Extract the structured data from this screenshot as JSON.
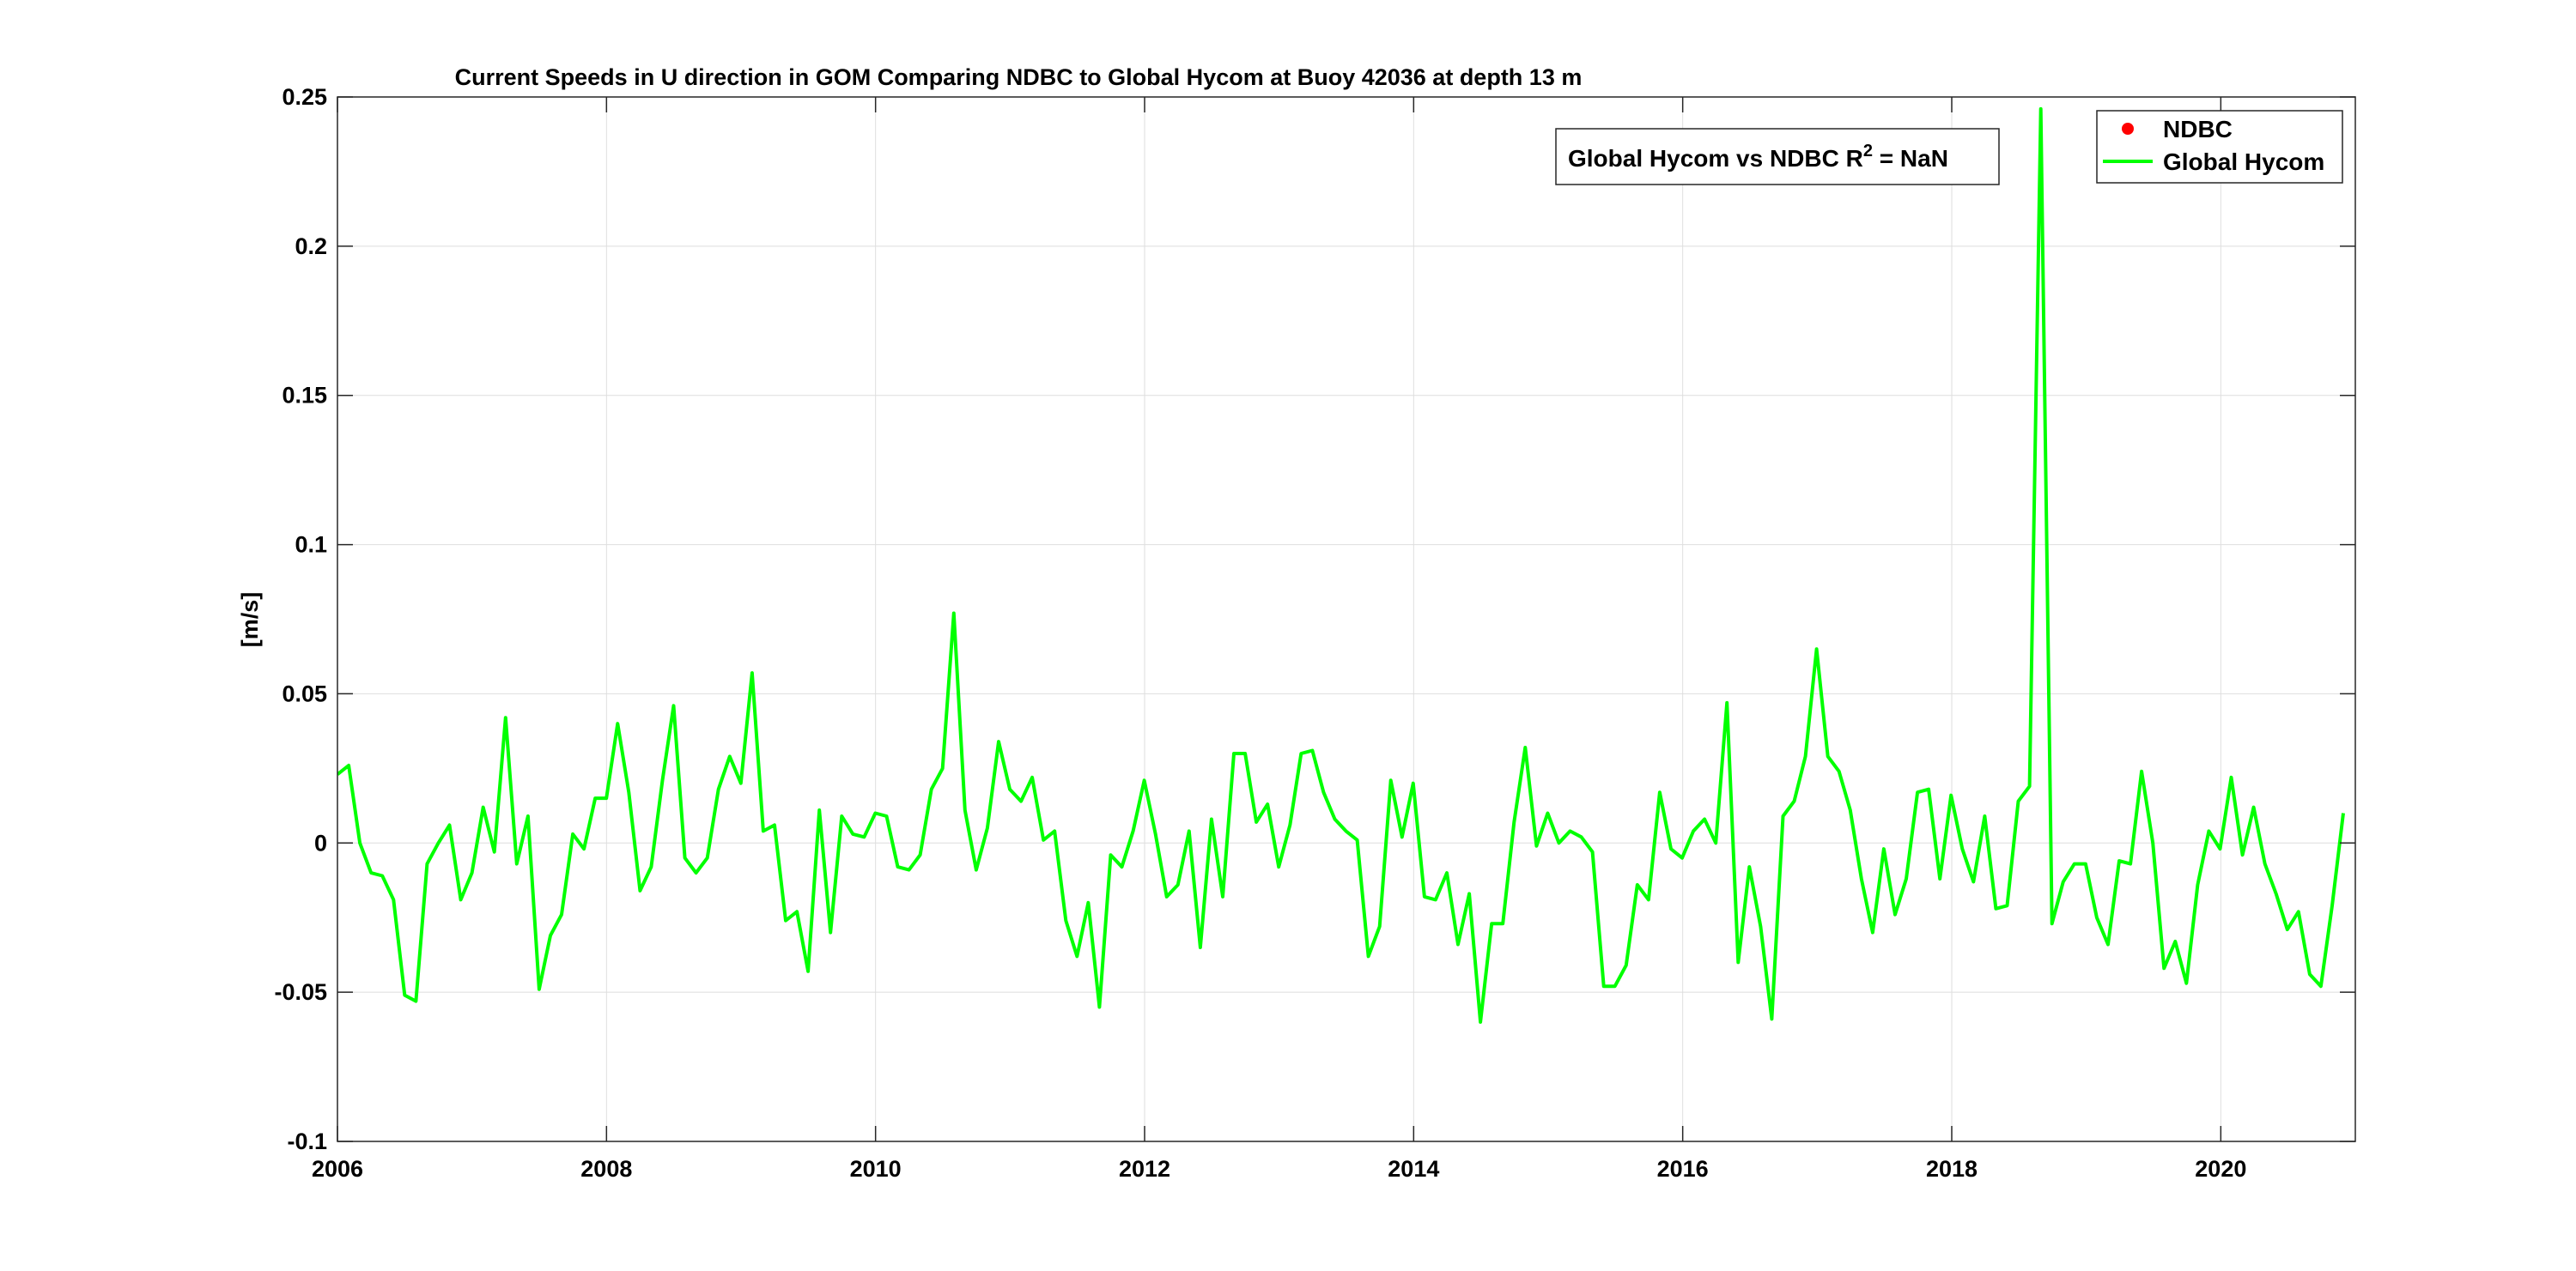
{
  "chart_data": {
    "type": "line",
    "title": "Current Speeds in U direction in GOM Comparing NDBC to Global Hycom at Buoy  42036  at depth  13 m",
    "xlabel": "",
    "ylabel": "[m/s]",
    "xlim": [
      2006,
      2021
    ],
    "ylim": [
      -0.1,
      0.25
    ],
    "x_ticks": [
      2006,
      2008,
      2010,
      2012,
      2014,
      2016,
      2018,
      2020
    ],
    "y_ticks": [
      -0.1,
      -0.05,
      0,
      0.05,
      0.1,
      0.15,
      0.2,
      0.25
    ],
    "x_tick_labels": [
      "2006",
      "2008",
      "2010",
      "2012",
      "2014",
      "2016",
      "2018",
      "2020"
    ],
    "y_tick_labels": [
      "-0.1",
      "-0.05",
      "0",
      "0.05",
      "0.1",
      "0.15",
      "0.2",
      "0.25"
    ],
    "grid": true,
    "legend_position": "top-right",
    "annotation": {
      "prefix": "Global Hycom vs NDBC R",
      "superscript": "2",
      "suffix": " = NaN"
    },
    "series": [
      {
        "name": "NDBC",
        "marker": "dot",
        "color": "#ff0000",
        "x": [],
        "y": []
      },
      {
        "name": "Global Hycom",
        "color": "#00ff00",
        "x_start": 2006.0,
        "x_step": 0.0833,
        "y": [
          0.023,
          0.026,
          0.0,
          -0.01,
          -0.011,
          -0.019,
          -0.051,
          -0.053,
          -0.007,
          0.0,
          0.006,
          -0.019,
          -0.01,
          0.012,
          -0.003,
          0.042,
          -0.007,
          0.009,
          -0.049,
          -0.031,
          -0.024,
          0.003,
          -0.002,
          0.015,
          0.015,
          0.04,
          0.017,
          -0.016,
          -0.008,
          0.021,
          0.046,
          -0.005,
          -0.01,
          -0.005,
          0.018,
          0.029,
          0.02,
          0.057,
          0.004,
          0.006,
          -0.026,
          -0.023,
          -0.043,
          0.011,
          -0.03,
          0.009,
          0.003,
          0.002,
          0.01,
          0.009,
          -0.008,
          -0.009,
          -0.004,
          0.018,
          0.025,
          0.077,
          0.011,
          -0.009,
          0.005,
          0.034,
          0.018,
          0.014,
          0.022,
          0.001,
          0.004,
          -0.026,
          -0.038,
          -0.02,
          -0.055,
          -0.004,
          -0.008,
          0.004,
          0.021,
          0.003,
          -0.018,
          -0.014,
          0.004,
          -0.035,
          0.008,
          -0.018,
          0.03,
          0.03,
          0.007,
          0.013,
          -0.008,
          0.006,
          0.03,
          0.031,
          0.017,
          0.008,
          0.004,
          0.001,
          -0.038,
          -0.028,
          0.021,
          0.002,
          0.02,
          -0.018,
          -0.019,
          -0.01,
          -0.034,
          -0.017,
          -0.06,
          -0.027,
          -0.027,
          0.007,
          0.032,
          -0.001,
          0.01,
          0.0,
          0.004,
          0.002,
          -0.003,
          -0.048,
          -0.048,
          -0.041,
          -0.014,
          -0.019,
          0.017,
          -0.002,
          -0.005,
          0.004,
          0.008,
          0.0,
          0.047,
          -0.04,
          -0.008,
          -0.028,
          -0.059,
          0.009,
          0.014,
          0.029,
          0.065,
          0.029,
          0.024,
          0.011,
          -0.012,
          -0.03,
          -0.002,
          -0.024,
          -0.012,
          0.017,
          0.018,
          -0.012,
          0.016,
          -0.002,
          -0.013,
          0.009,
          -0.022,
          -0.021,
          0.014,
          0.019,
          0.246,
          -0.027,
          -0.013,
          -0.007,
          -0.007,
          -0.025,
          -0.034,
          -0.006,
          -0.007,
          0.024,
          0.0,
          -0.042,
          -0.033,
          -0.047,
          -0.014,
          0.004,
          -0.002,
          0.022,
          -0.004,
          0.012,
          -0.007,
          -0.017,
          -0.029,
          -0.023,
          -0.044,
          -0.048,
          -0.021,
          0.01
        ]
      }
    ]
  }
}
